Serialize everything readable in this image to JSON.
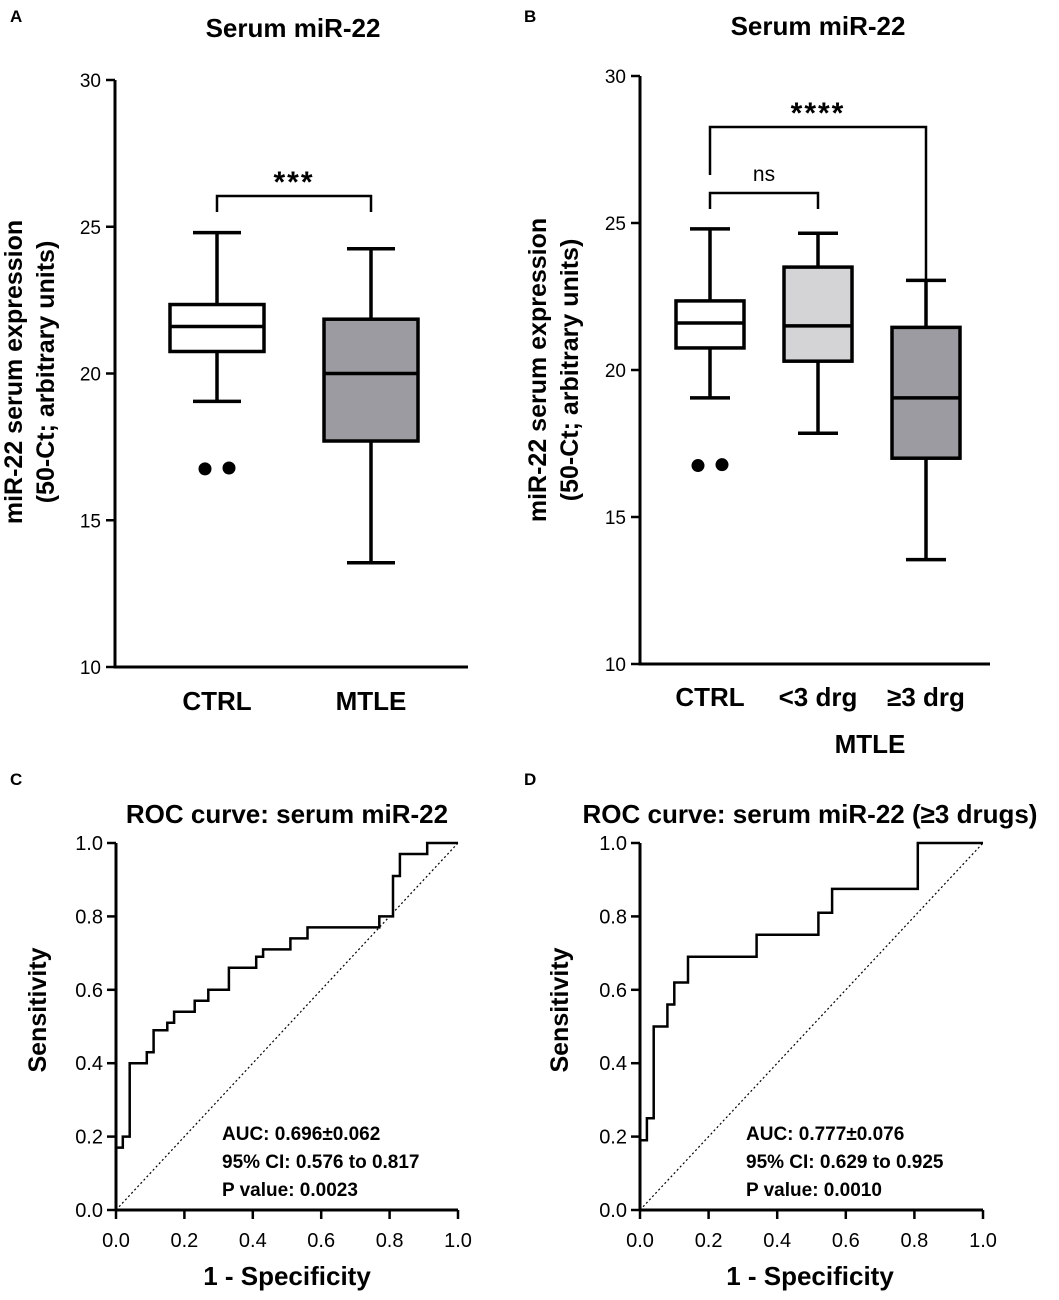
{
  "colors": {
    "axis": "#000000",
    "box_ctrl": "#ffffff",
    "box_mtle": "#9b9ba1",
    "box_light": "#d4d4d6",
    "box_dark": "#9b9ba1"
  },
  "chart_data": [
    {
      "panel": "A",
      "type": "box",
      "title": "Serum miR-22",
      "ylabel": [
        "miR-22 serum expression",
        "(50-Ct; arbitrary units)"
      ],
      "ylim": [
        10,
        30
      ],
      "yticks": [
        "10",
        "15",
        "20",
        "25",
        "30"
      ],
      "categories": [
        "CTRL",
        "MTLE"
      ],
      "boxes": [
        {
          "name": "CTRL",
          "min": 19.05,
          "q1": 20.75,
          "median": 21.6,
          "q3": 22.35,
          "max": 24.8,
          "outliers": [
            16.75,
            16.78
          ],
          "fill": "#ffffff"
        },
        {
          "name": "MTLE",
          "min": 13.55,
          "q1": 17.7,
          "median": 20.0,
          "q3": 21.85,
          "max": 24.25,
          "outliers": [],
          "fill": "#9b9ba1"
        }
      ],
      "significance": [
        {
          "from": "CTRL",
          "to": "MTLE",
          "label": "***"
        }
      ]
    },
    {
      "panel": "B",
      "type": "box",
      "title": "Serum miR-22",
      "ylabel": [
        "miR-22 serum expression",
        "(50-Ct; arbitrary units)"
      ],
      "ylim": [
        10,
        30
      ],
      "yticks": [
        "10",
        "15",
        "20",
        "25",
        "30"
      ],
      "categories": [
        "CTRL",
        "<3 drg",
        "≥3 drg"
      ],
      "group_label": "MTLE",
      "boxes": [
        {
          "name": "CTRL",
          "min": 19.05,
          "q1": 20.75,
          "median": 21.6,
          "q3": 22.35,
          "max": 24.8,
          "outliers": [
            16.75,
            16.78
          ],
          "fill": "#ffffff"
        },
        {
          "name": "<3 drg",
          "min": 17.85,
          "q1": 20.3,
          "median": 21.5,
          "q3": 23.5,
          "max": 24.65,
          "outliers": [],
          "fill": "#d4d4d6"
        },
        {
          "name": "≥3 drg",
          "min": 13.55,
          "q1": 17.0,
          "median": 19.05,
          "q3": 21.45,
          "max": 23.05,
          "outliers": [],
          "fill": "#9b9ba1"
        }
      ],
      "significance": [
        {
          "from": "CTRL",
          "to": "<3 drg",
          "label": "ns"
        },
        {
          "from": "CTRL",
          "to": "≥3 drg",
          "label": "****"
        }
      ]
    },
    {
      "panel": "C",
      "type": "line",
      "title": "ROC curve: serum miR-22",
      "xlabel": "1 - Specificity",
      "ylabel": "Sensitivity",
      "xlim": [
        0,
        1
      ],
      "ylim": [
        0,
        1
      ],
      "xticks": [
        "0.0",
        "0.2",
        "0.4",
        "0.6",
        "0.8",
        "1.0"
      ],
      "yticks": [
        "0.0",
        "0.2",
        "0.4",
        "0.6",
        "0.8",
        "1.0"
      ],
      "annotations": [
        "AUC: 0.696±0.062",
        "95% CI: 0.576 to 0.817",
        "P value: 0.0023"
      ],
      "curve": [
        [
          0,
          0
        ],
        [
          0,
          0.17
        ],
        [
          0.02,
          0.17
        ],
        [
          0.02,
          0.2
        ],
        [
          0.04,
          0.2
        ],
        [
          0.04,
          0.4
        ],
        [
          0.09,
          0.4
        ],
        [
          0.09,
          0.43
        ],
        [
          0.11,
          0.43
        ],
        [
          0.11,
          0.49
        ],
        [
          0.15,
          0.49
        ],
        [
          0.15,
          0.51
        ],
        [
          0.17,
          0.51
        ],
        [
          0.17,
          0.54
        ],
        [
          0.23,
          0.54
        ],
        [
          0.23,
          0.57
        ],
        [
          0.27,
          0.57
        ],
        [
          0.27,
          0.6
        ],
        [
          0.33,
          0.6
        ],
        [
          0.33,
          0.66
        ],
        [
          0.41,
          0.66
        ],
        [
          0.41,
          0.69
        ],
        [
          0.43,
          0.69
        ],
        [
          0.43,
          0.71
        ],
        [
          0.51,
          0.71
        ],
        [
          0.51,
          0.74
        ],
        [
          0.56,
          0.74
        ],
        [
          0.56,
          0.77
        ],
        [
          0.77,
          0.77
        ],
        [
          0.77,
          0.8
        ],
        [
          0.81,
          0.8
        ],
        [
          0.81,
          0.91
        ],
        [
          0.83,
          0.91
        ],
        [
          0.83,
          0.97
        ],
        [
          0.91,
          0.97
        ],
        [
          0.91,
          1.0
        ],
        [
          1.0,
          1.0
        ]
      ],
      "reference_line": [
        [
          0,
          0
        ],
        [
          1,
          1
        ]
      ]
    },
    {
      "panel": "D",
      "type": "line",
      "title": "ROC curve: serum miR-22 (≥3 drugs)",
      "xlabel": "1 - Specificity",
      "ylabel": "Sensitivity",
      "xlim": [
        0,
        1
      ],
      "ylim": [
        0,
        1
      ],
      "xticks": [
        "0.0",
        "0.2",
        "0.4",
        "0.6",
        "0.8",
        "1.0"
      ],
      "yticks": [
        "0.0",
        "0.2",
        "0.4",
        "0.6",
        "0.8",
        "1.0"
      ],
      "annotations": [
        "AUC: 0.777±0.076",
        "95% CI: 0.629 to 0.925",
        "P value: 0.0010"
      ],
      "curve": [
        [
          0,
          0
        ],
        [
          0,
          0.19
        ],
        [
          0.02,
          0.19
        ],
        [
          0.02,
          0.25
        ],
        [
          0.04,
          0.25
        ],
        [
          0.04,
          0.5
        ],
        [
          0.08,
          0.5
        ],
        [
          0.08,
          0.56
        ],
        [
          0.1,
          0.56
        ],
        [
          0.1,
          0.62
        ],
        [
          0.14,
          0.62
        ],
        [
          0.14,
          0.69
        ],
        [
          0.34,
          0.69
        ],
        [
          0.34,
          0.75
        ],
        [
          0.52,
          0.75
        ],
        [
          0.52,
          0.81
        ],
        [
          0.56,
          0.81
        ],
        [
          0.56,
          0.875
        ],
        [
          0.81,
          0.875
        ],
        [
          0.81,
          1.0
        ],
        [
          1.0,
          1.0
        ]
      ],
      "reference_line": [
        [
          0,
          0
        ],
        [
          1,
          1
        ]
      ]
    }
  ]
}
